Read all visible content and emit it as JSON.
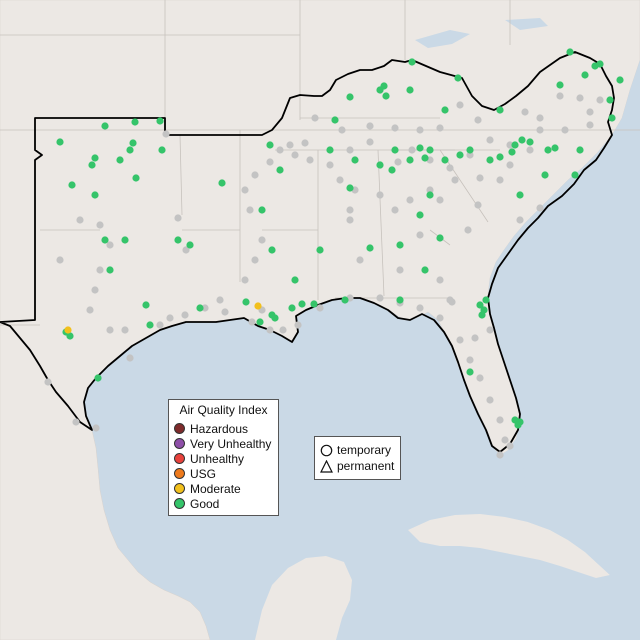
{
  "legend_aqi": {
    "title": "Air Quality Index",
    "items": [
      {
        "label": "Hazardous",
        "color": "#7e2b2b"
      },
      {
        "label": "Very Unhealthy",
        "color": "#8e4fa8"
      },
      {
        "label": "Unhealthy",
        "color": "#e8413b"
      },
      {
        "label": "USG",
        "color": "#ee7a1c"
      },
      {
        "label": "Moderate",
        "color": "#f2c01c"
      },
      {
        "label": "Good",
        "color": "#35c46a"
      }
    ]
  },
  "legend_shape": {
    "temporary": "temporary",
    "permanent": "permanent"
  },
  "colors": {
    "water": "#cad9e6",
    "land": "#ece8e4",
    "good": "#35c46a",
    "moderate": "#f2c01c",
    "other_station": "#c3c3c3"
  }
}
